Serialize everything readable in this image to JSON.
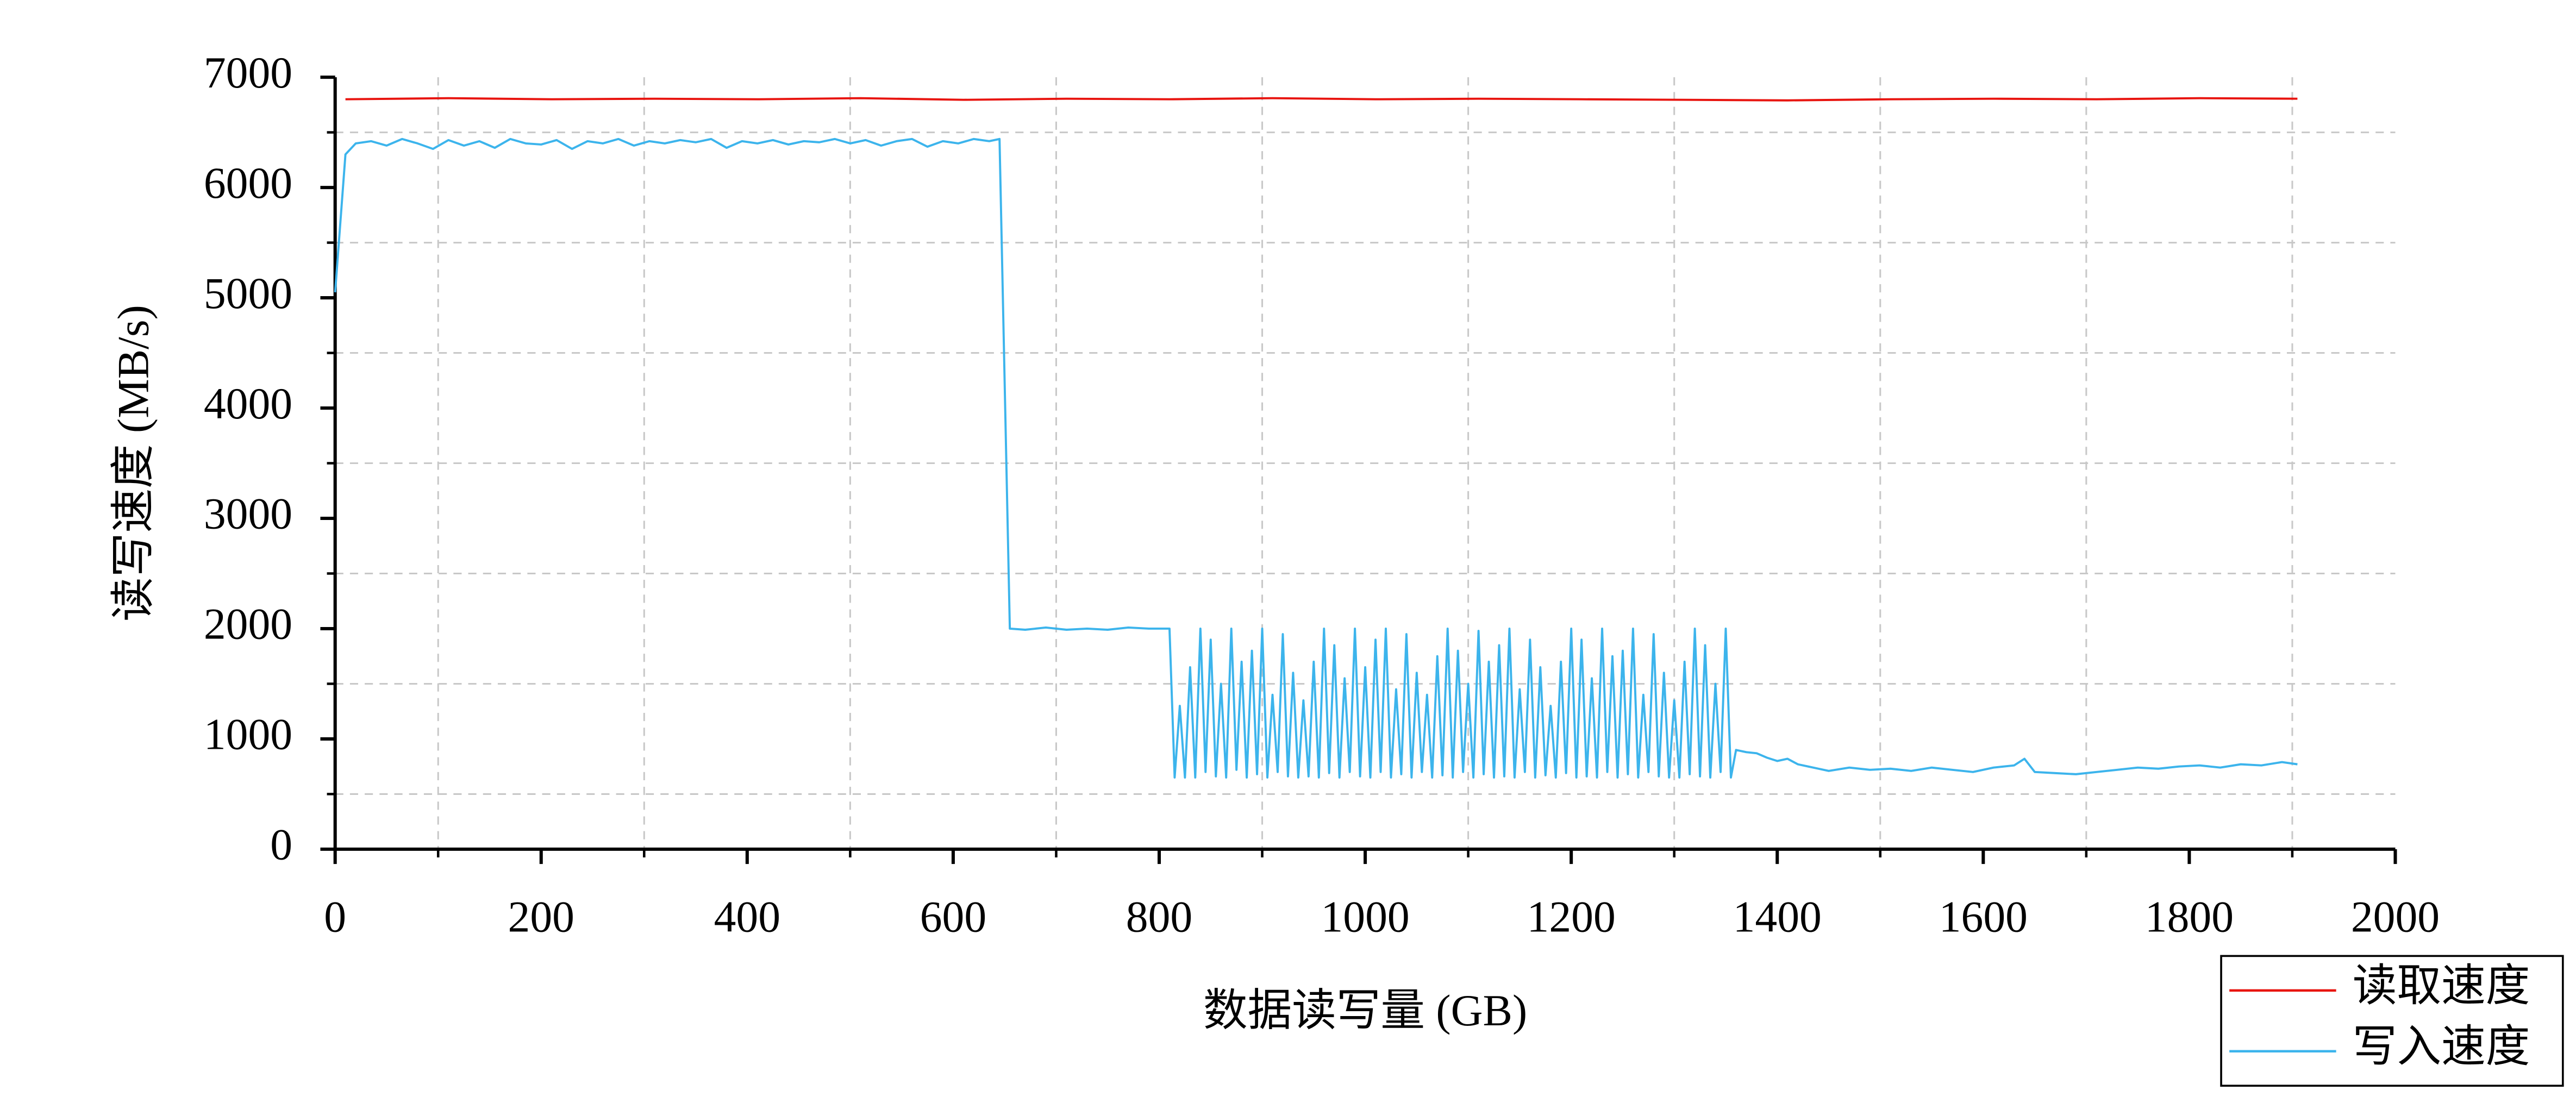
{
  "chart_data": {
    "type": "line",
    "xlabel": "数据读写量 (GB)",
    "ylabel": "读写速度 (MB/s)",
    "xlim": [
      0,
      2000
    ],
    "xticks": [
      0,
      200,
      400,
      600,
      800,
      1000,
      1200,
      1400,
      1600,
      1800,
      2000
    ],
    "xminorticks": [
      100,
      300,
      500,
      700,
      900,
      1100,
      1300,
      1500,
      1700,
      1900
    ],
    "ylim": [
      0,
      7000
    ],
    "yticks": [
      0,
      1000,
      2000,
      3000,
      4000,
      5000,
      6000,
      7000
    ],
    "yminorticks": [
      500,
      1500,
      2500,
      3500,
      4500,
      5500,
      6500
    ],
    "grid": true,
    "legend": "bottom-right",
    "series": [
      {
        "name": "读取速度",
        "color": "#e8140f",
        "x": [
          10,
          110,
          210,
          310,
          410,
          510,
          610,
          710,
          810,
          910,
          1010,
          1110,
          1210,
          1310,
          1410,
          1510,
          1610,
          1710,
          1810,
          1905
        ],
        "values": [
          6800,
          6810,
          6800,
          6805,
          6800,
          6810,
          6795,
          6805,
          6800,
          6810,
          6800,
          6805,
          6800,
          6795,
          6790,
          6800,
          6805,
          6800,
          6810,
          6805
        ]
      },
      {
        "name": "写入速度",
        "color": "#3cb4ec",
        "x": [
          0,
          10,
          20,
          35,
          50,
          65,
          80,
          95,
          110,
          125,
          140,
          155,
          170,
          185,
          200,
          215,
          230,
          245,
          260,
          275,
          290,
          305,
          320,
          335,
          350,
          365,
          380,
          395,
          410,
          425,
          440,
          455,
          470,
          485,
          500,
          515,
          530,
          545,
          560,
          575,
          590,
          605,
          620,
          635,
          645,
          655,
          670,
          690,
          710,
          730,
          750,
          770,
          790,
          810,
          815,
          820,
          825,
          830,
          835,
          840,
          845,
          850,
          855,
          860,
          865,
          870,
          875,
          880,
          885,
          890,
          895,
          900,
          905,
          910,
          915,
          920,
          925,
          930,
          935,
          940,
          945,
          950,
          955,
          960,
          965,
          970,
          975,
          980,
          985,
          990,
          995,
          1000,
          1005,
          1010,
          1015,
          1020,
          1025,
          1030,
          1035,
          1040,
          1045,
          1050,
          1055,
          1060,
          1065,
          1070,
          1075,
          1080,
          1085,
          1090,
          1095,
          1100,
          1105,
          1110,
          1115,
          1120,
          1125,
          1130,
          1135,
          1140,
          1145,
          1150,
          1155,
          1160,
          1165,
          1170,
          1175,
          1180,
          1185,
          1190,
          1195,
          1200,
          1205,
          1210,
          1215,
          1220,
          1225,
          1230,
          1235,
          1240,
          1245,
          1250,
          1255,
          1260,
          1265,
          1270,
          1275,
          1280,
          1285,
          1290,
          1295,
          1300,
          1305,
          1310,
          1315,
          1320,
          1325,
          1330,
          1335,
          1340,
          1345,
          1350,
          1355,
          1360,
          1370,
          1380,
          1390,
          1400,
          1410,
          1420,
          1430,
          1440,
          1450,
          1470,
          1490,
          1510,
          1530,
          1550,
          1570,
          1590,
          1610,
          1630,
          1640,
          1650,
          1670,
          1690,
          1710,
          1730,
          1750,
          1770,
          1790,
          1810,
          1830,
          1850,
          1870,
          1890,
          1905
        ],
        "values": [
          5050,
          6300,
          6400,
          6420,
          6380,
          6440,
          6400,
          6350,
          6430,
          6380,
          6420,
          6360,
          6440,
          6400,
          6390,
          6430,
          6350,
          6420,
          6400,
          6440,
          6380,
          6420,
          6400,
          6430,
          6410,
          6440,
          6360,
          6420,
          6400,
          6430,
          6390,
          6420,
          6410,
          6440,
          6400,
          6430,
          6380,
          6420,
          6440,
          6370,
          6420,
          6400,
          6440,
          6420,
          6440,
          2000,
          1990,
          2010,
          1990,
          2000,
          1990,
          2010,
          2000,
          2000,
          650,
          1300,
          650,
          1650,
          650,
          2000,
          700,
          1900,
          660,
          1500,
          650,
          2000,
          720,
          1700,
          650,
          1800,
          680,
          2000,
          650,
          1400,
          700,
          1950,
          660,
          1600,
          650,
          1350,
          660,
          1700,
          650,
          2000,
          690,
          1850,
          650,
          1550,
          700,
          2000,
          660,
          1650,
          650,
          1900,
          700,
          2000,
          650,
          1450,
          680,
          1950,
          650,
          1600,
          700,
          1400,
          650,
          1750,
          670,
          2000,
          650,
          1800,
          700,
          1500,
          650,
          1980,
          680,
          1700,
          650,
          1850,
          660,
          2000,
          650,
          1450,
          700,
          1900,
          650,
          1650,
          670,
          1300,
          650,
          1700,
          690,
          2000,
          650,
          1900,
          660,
          1550,
          650,
          2000,
          700,
          1750,
          650,
          1800,
          680,
          2000,
          650,
          1400,
          700,
          1950,
          660,
          1600,
          650,
          1350,
          650,
          1700,
          680,
          2000,
          660,
          1850,
          650,
          1500,
          700,
          2000,
          650,
          900,
          880,
          870,
          830,
          800,
          820,
          770,
          750,
          730,
          710,
          740,
          720,
          730,
          710,
          740,
          720,
          700,
          740,
          760,
          820,
          700,
          690,
          680,
          700,
          720,
          740,
          730,
          750,
          760,
          740,
          770,
          760,
          790,
          770
        ]
      }
    ]
  }
}
